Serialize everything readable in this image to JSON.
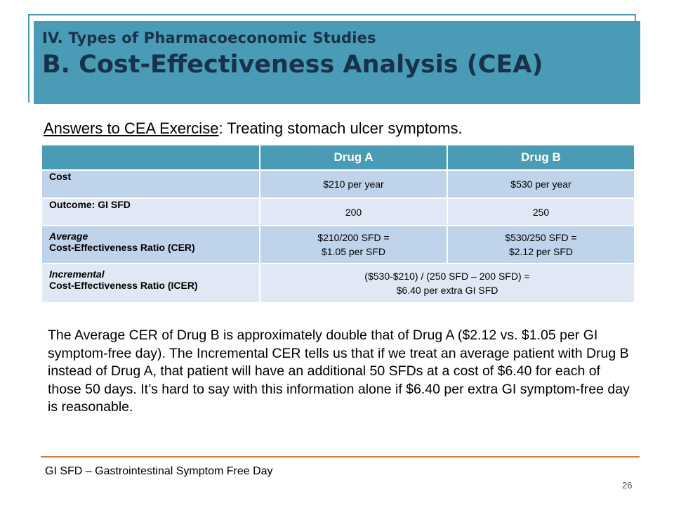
{
  "header": {
    "section": "IV. Types of Pharmacoeconomic Studies",
    "title": "B. Cost-Effectiveness Analysis (CEA)"
  },
  "subtitle": {
    "underlined": "Answers to CEA Exercise",
    "rest": ":  Treating stomach ulcer symptoms."
  },
  "table": {
    "columns": [
      "",
      "Drug A",
      "Drug B"
    ],
    "rows": [
      {
        "label": "Cost",
        "a": "$210 per year",
        "b": "$530 per year"
      },
      {
        "label": "Outcome: GI SFD",
        "a": "200",
        "b": "250"
      },
      {
        "label_line1": "Average",
        "label_line2": "Cost-Effectiveness Ratio (CER)",
        "a_line1": "$210/200 SFD =",
        "a_line2": "$1.05 per SFD",
        "b_line1": "$530/250 SFD =",
        "b_line2": "$2.12 per SFD"
      },
      {
        "label_line1": "Incremental",
        "label_line2": "Cost-Effectiveness Ratio (ICER)",
        "span_line1": "($530-$210) / (250 SFD – 200 SFD) =",
        "span_line2": "$6.40 per extra GI SFD"
      }
    ]
  },
  "body_text": "The Average CER of Drug B is approximately double that of Drug A ($2.12 vs. $1.05 per GI symptom-free day).  The Incremental CER tells us that if we treat an average patient with Drug B instead of Drug A, that patient will have an additional 50 SFDs at a cost of $6.40 for each of those 50 days.  It’s hard to say with this information alone if $6.40 per extra GI symptom-free day is reasonable.",
  "footnote": "GI SFD – Gastrointestinal Symptom Free Day",
  "page_number": "26",
  "colors": {
    "header_bg": "#4a9bb5",
    "header_text": "#17324a",
    "row_dark": "#bfd3ea",
    "row_light": "#dfe8f4",
    "rule": "#d4793d"
  }
}
